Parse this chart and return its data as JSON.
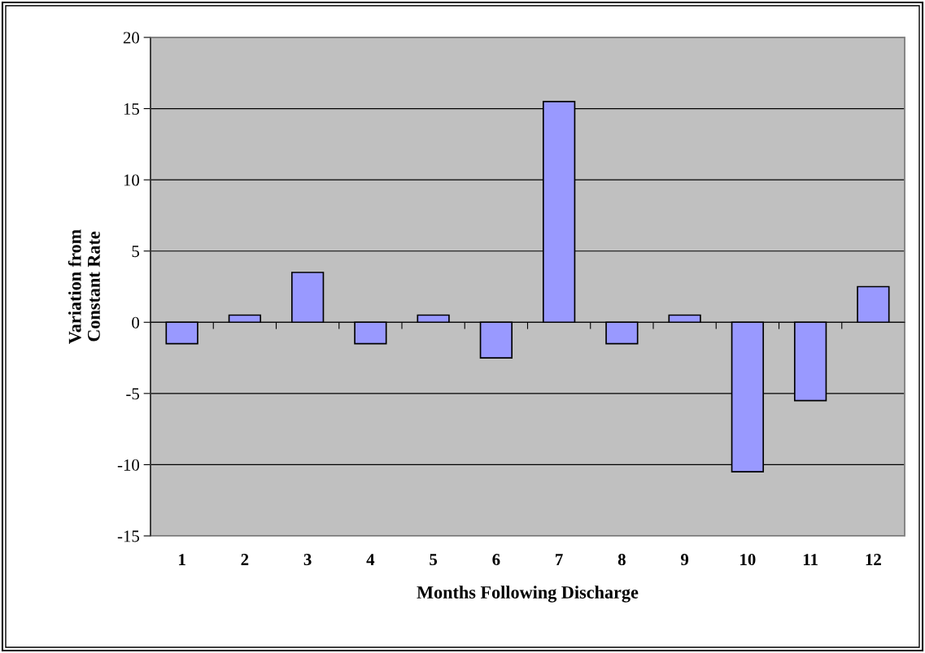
{
  "chart_data": {
    "type": "bar",
    "categories": [
      "1",
      "2",
      "3",
      "4",
      "5",
      "6",
      "7",
      "8",
      "9",
      "10",
      "11",
      "12"
    ],
    "values": [
      -1.5,
      0.5,
      3.5,
      -1.5,
      0.5,
      -2.5,
      15.5,
      -1.5,
      0.5,
      -10.5,
      -5.5,
      2.5
    ],
    "color": "#9999ff",
    "xlabel": "Months Following Discharge",
    "ylabel": "Variation from\nConstant Rate",
    "ylim": [
      -15,
      20
    ],
    "yticks": [
      -15,
      -10,
      -5,
      0,
      5,
      10,
      15,
      20
    ],
    "grid": "y",
    "legend": false
  }
}
